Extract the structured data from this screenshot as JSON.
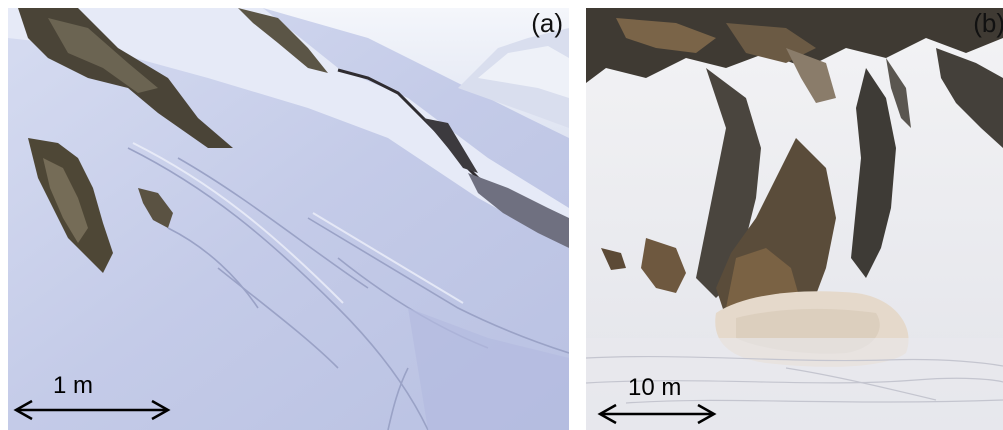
{
  "panels": [
    {
      "label": "(a)",
      "scale_bar": "1 m"
    },
    {
      "label": "(b)",
      "scale_bar": "10 m"
    }
  ],
  "colors": {
    "snow_shadow": "#c9d0ea",
    "snow_light": "#eef1fb",
    "rock_dark": "#3d3428",
    "rock_brown": "#6e5a40",
    "avalanche_debris": "#e8ddd2"
  }
}
